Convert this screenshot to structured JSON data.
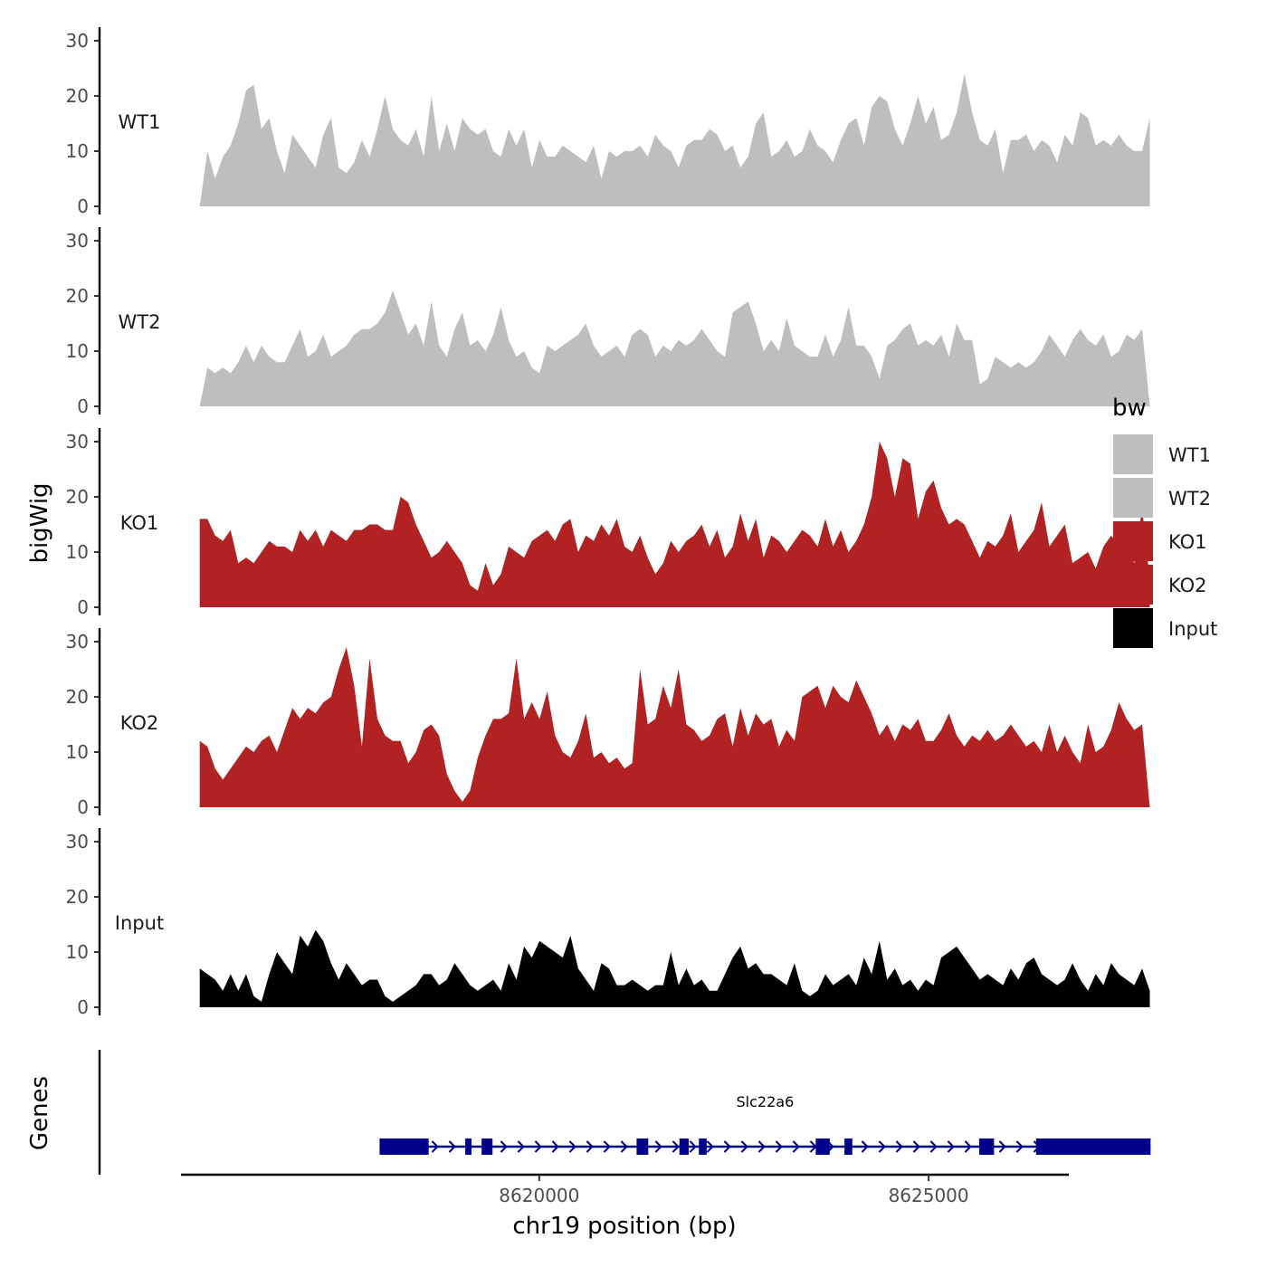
{
  "chart_data": {
    "type": "area",
    "title": "",
    "ylabel": "bigWig",
    "xlabel": "chr19 position (bp)",
    "genes_label": "Genes",
    "ylim": [
      0,
      32
    ],
    "y_ticks": [
      0,
      10,
      20,
      30
    ],
    "x_range": [
      8615400,
      8626800
    ],
    "x_ticks": [
      8620000,
      8625000
    ],
    "x_tick_labels": [
      "8620000",
      "8625000"
    ],
    "data_x_range": [
      8615640,
      8627840
    ],
    "legend": {
      "title": "bw",
      "entries": [
        {
          "label": "WT1",
          "color": "#bebebe"
        },
        {
          "label": "WT2",
          "color": "#bebebe"
        },
        {
          "label": "KO1",
          "color": "#b22222"
        },
        {
          "label": "KO2",
          "color": "#b22222"
        },
        {
          "label": "Input",
          "color": "#000000"
        }
      ]
    },
    "series": [
      {
        "name": "WT1",
        "color": "#bebebe",
        "values": [
          0,
          10,
          5,
          9,
          11,
          15,
          21,
          22,
          14,
          16,
          10,
          6,
          13,
          11,
          9,
          7,
          13,
          16,
          7,
          6,
          8,
          12,
          9,
          14,
          20,
          14,
          12,
          11,
          14,
          9,
          20,
          10,
          15,
          10,
          16,
          14,
          13,
          14,
          10,
          9,
          14,
          11,
          14,
          7,
          12,
          9,
          9,
          11,
          10,
          9,
          8,
          11,
          5,
          10,
          9,
          10,
          10,
          11,
          9,
          13,
          11,
          10,
          7,
          11,
          12,
          12,
          14,
          13,
          10,
          11,
          7,
          9,
          15,
          17,
          9,
          10,
          12,
          9,
          10,
          14,
          11,
          10,
          8,
          12,
          15,
          16,
          11,
          18,
          20,
          19,
          14,
          11,
          15,
          20,
          15,
          18,
          12,
          13,
          17,
          24,
          17,
          12,
          11,
          14,
          6,
          12,
          12,
          13,
          10,
          12,
          11,
          8,
          13,
          11,
          17,
          16,
          11,
          12,
          11,
          13,
          11,
          10,
          10,
          16
        ]
      },
      {
        "name": "WT2",
        "color": "#bebebe",
        "values": [
          0,
          7,
          6,
          7,
          6,
          8,
          11,
          8,
          11,
          9,
          8,
          8,
          11,
          14,
          9,
          10,
          13,
          9,
          10,
          11,
          13,
          14,
          14,
          15,
          17,
          21,
          17,
          13,
          15,
          11,
          19,
          11,
          9,
          14,
          17,
          11,
          12,
          10,
          13,
          18,
          12,
          9,
          10,
          7,
          6,
          11,
          10,
          11,
          12,
          13,
          15,
          11,
          9,
          10,
          11,
          9,
          13,
          14,
          13,
          9,
          11,
          10,
          12,
          11,
          12,
          14,
          12,
          10,
          9,
          17,
          18,
          19,
          15,
          10,
          12,
          10,
          16,
          11,
          10,
          9,
          9,
          13,
          9,
          12,
          18,
          11,
          11,
          9,
          5,
          11,
          12,
          14,
          15,
          11,
          12,
          11,
          13,
          9,
          15,
          12,
          12,
          4,
          5,
          9,
          8,
          7,
          8,
          7,
          8,
          10,
          13,
          11,
          9,
          12,
          14,
          12,
          11,
          13,
          9,
          10,
          13,
          12,
          14,
          0
        ]
      },
      {
        "name": "KO1",
        "color": "#b22222",
        "values": [
          16,
          16,
          13,
          12,
          14,
          8,
          9,
          8,
          10,
          12,
          11,
          11,
          10,
          14,
          12,
          14,
          11,
          14,
          13,
          12,
          14,
          14,
          15,
          15,
          14,
          14,
          20,
          19,
          15,
          12,
          9,
          10,
          12,
          10,
          8,
          4,
          3,
          8,
          4,
          6,
          11,
          10,
          9,
          12,
          13,
          14,
          12,
          15,
          16,
          10,
          13,
          12,
          15,
          13,
          16,
          11,
          10,
          13,
          9,
          6,
          8,
          12,
          10,
          12,
          13,
          15,
          11,
          14,
          9,
          11,
          17,
          12,
          16,
          9,
          13,
          12,
          10,
          12,
          14,
          13,
          11,
          16,
          11,
          14,
          10,
          12,
          15,
          20,
          30,
          27,
          20,
          27,
          26,
          16,
          21,
          23,
          18,
          15,
          16,
          15,
          12,
          9,
          12,
          11,
          13,
          17,
          10,
          12,
          14,
          19,
          11,
          13,
          15,
          8,
          9,
          10,
          7,
          11,
          13,
          11,
          12,
          8,
          18,
          5
        ]
      },
      {
        "name": "KO2",
        "color": "#b22222",
        "values": [
          12,
          11,
          7,
          5,
          7,
          9,
          11,
          10,
          12,
          13,
          10,
          14,
          18,
          16,
          18,
          17,
          19,
          20,
          25,
          29,
          22,
          11,
          27,
          16,
          13,
          12,
          12,
          8,
          10,
          14,
          15,
          13,
          6,
          3,
          1,
          3,
          9,
          13,
          16,
          16,
          17,
          27,
          16,
          19,
          16,
          21,
          13,
          10,
          9,
          12,
          17,
          9,
          10,
          8,
          9,
          7,
          8,
          25,
          15,
          16,
          22,
          18,
          25,
          15,
          14,
          12,
          13,
          16,
          17,
          11,
          18,
          13,
          17,
          15,
          16,
          11,
          14,
          12,
          20,
          21,
          22,
          18,
          22,
          20,
          19,
          23,
          20,
          17,
          13,
          15,
          12,
          15,
          14,
          16,
          12,
          12,
          14,
          17,
          13,
          11,
          13,
          12,
          14,
          12,
          13,
          15,
          13,
          11,
          12,
          10,
          15,
          10,
          13,
          10,
          8,
          15,
          10,
          11,
          14,
          19,
          16,
          14,
          15,
          0
        ]
      },
      {
        "name": "Input",
        "color": "#000000",
        "values": [
          7,
          6,
          5,
          3,
          6,
          3,
          6,
          2,
          1,
          6,
          10,
          8,
          6,
          13,
          11,
          14,
          12,
          8,
          5,
          8,
          6,
          4,
          5,
          5,
          2,
          1,
          2,
          3,
          4,
          6,
          6,
          4,
          5,
          8,
          6,
          4,
          3,
          4,
          5,
          3,
          8,
          5,
          11,
          9,
          12,
          11,
          10,
          9,
          13,
          7,
          5,
          3,
          8,
          7,
          4,
          4,
          5,
          4,
          3,
          4,
          4,
          10,
          4,
          7,
          4,
          5,
          3,
          3,
          6,
          9,
          11,
          7,
          8,
          6,
          6,
          5,
          4,
          8,
          3,
          2,
          3,
          6,
          4,
          5,
          6,
          4,
          9,
          6,
          12,
          5,
          7,
          4,
          5,
          3,
          5,
          4,
          9,
          10,
          11,
          9,
          7,
          5,
          6,
          5,
          4,
          7,
          5,
          8,
          9,
          6,
          5,
          4,
          5,
          8,
          5,
          3,
          6,
          4,
          8,
          6,
          5,
          4,
          7,
          3
        ]
      }
    ],
    "genes": [
      {
        "name": "Slc22a6",
        "strand": "+",
        "color": "#00008b",
        "start": 8617950,
        "end": 8627850,
        "exons": [
          [
            8617950,
            8618580
          ],
          [
            8619050,
            8619130
          ],
          [
            8619260,
            8619400
          ],
          [
            8621250,
            8621400
          ],
          [
            8621800,
            8621920
          ],
          [
            8622050,
            8622150
          ],
          [
            8623550,
            8623730
          ],
          [
            8623920,
            8624020
          ],
          [
            8625650,
            8625840
          ],
          [
            8626380,
            8627850
          ]
        ]
      }
    ]
  }
}
